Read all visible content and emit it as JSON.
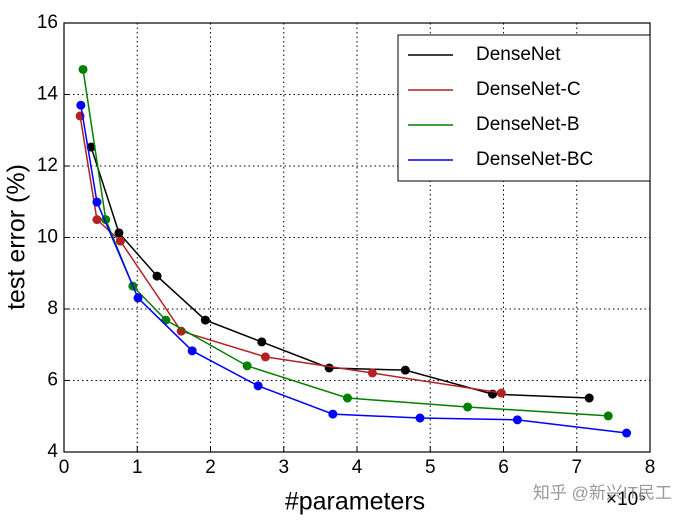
{
  "chart_data": {
    "type": "line",
    "x_label": "#parameters",
    "y_label": "test error (%)",
    "x_multiplier": "×10⁵",
    "watermark": "知乎 @新兴IT民工",
    "xlim": [
      0,
      8
    ],
    "xticks": [
      0,
      1,
      2,
      3,
      4,
      5,
      6,
      7,
      8
    ],
    "ylim": [
      4,
      16
    ],
    "yticks": [
      4,
      6,
      8,
      10,
      12,
      14,
      16
    ],
    "grid": true,
    "legend": "upper right",
    "series": [
      {
        "name": "DenseNet",
        "color": "#000000",
        "x": [
          0.37,
          0.75,
          1.27,
          1.93,
          2.7,
          3.62,
          4.66,
          5.85,
          7.17
        ],
        "values": [
          12.53,
          10.13,
          8.92,
          7.69,
          7.08,
          6.35,
          6.29,
          5.62,
          5.51
        ]
      },
      {
        "name": "DenseNet-C",
        "color": "#b22222",
        "x": [
          0.22,
          0.45,
          0.77,
          1.6,
          2.75,
          4.21,
          5.97
        ],
        "values": [
          13.4,
          10.5,
          9.9,
          7.38,
          6.66,
          6.21,
          5.65
        ]
      },
      {
        "name": "DenseNet-B",
        "color": "#008000",
        "x": [
          0.26,
          0.57,
          0.94,
          1.39,
          2.5,
          3.87,
          5.51,
          7.43
        ],
        "values": [
          14.7,
          10.5,
          8.64,
          7.69,
          6.41,
          5.51,
          5.26,
          5.01
        ]
      },
      {
        "name": "DenseNet-BC",
        "color": "#0000ff",
        "x": [
          0.23,
          0.45,
          1.01,
          1.75,
          2.65,
          3.67,
          4.86,
          6.19,
          7.68
        ],
        "values": [
          13.7,
          10.99,
          8.31,
          6.83,
          5.85,
          5.06,
          4.95,
          4.9,
          4.53
        ]
      }
    ]
  }
}
